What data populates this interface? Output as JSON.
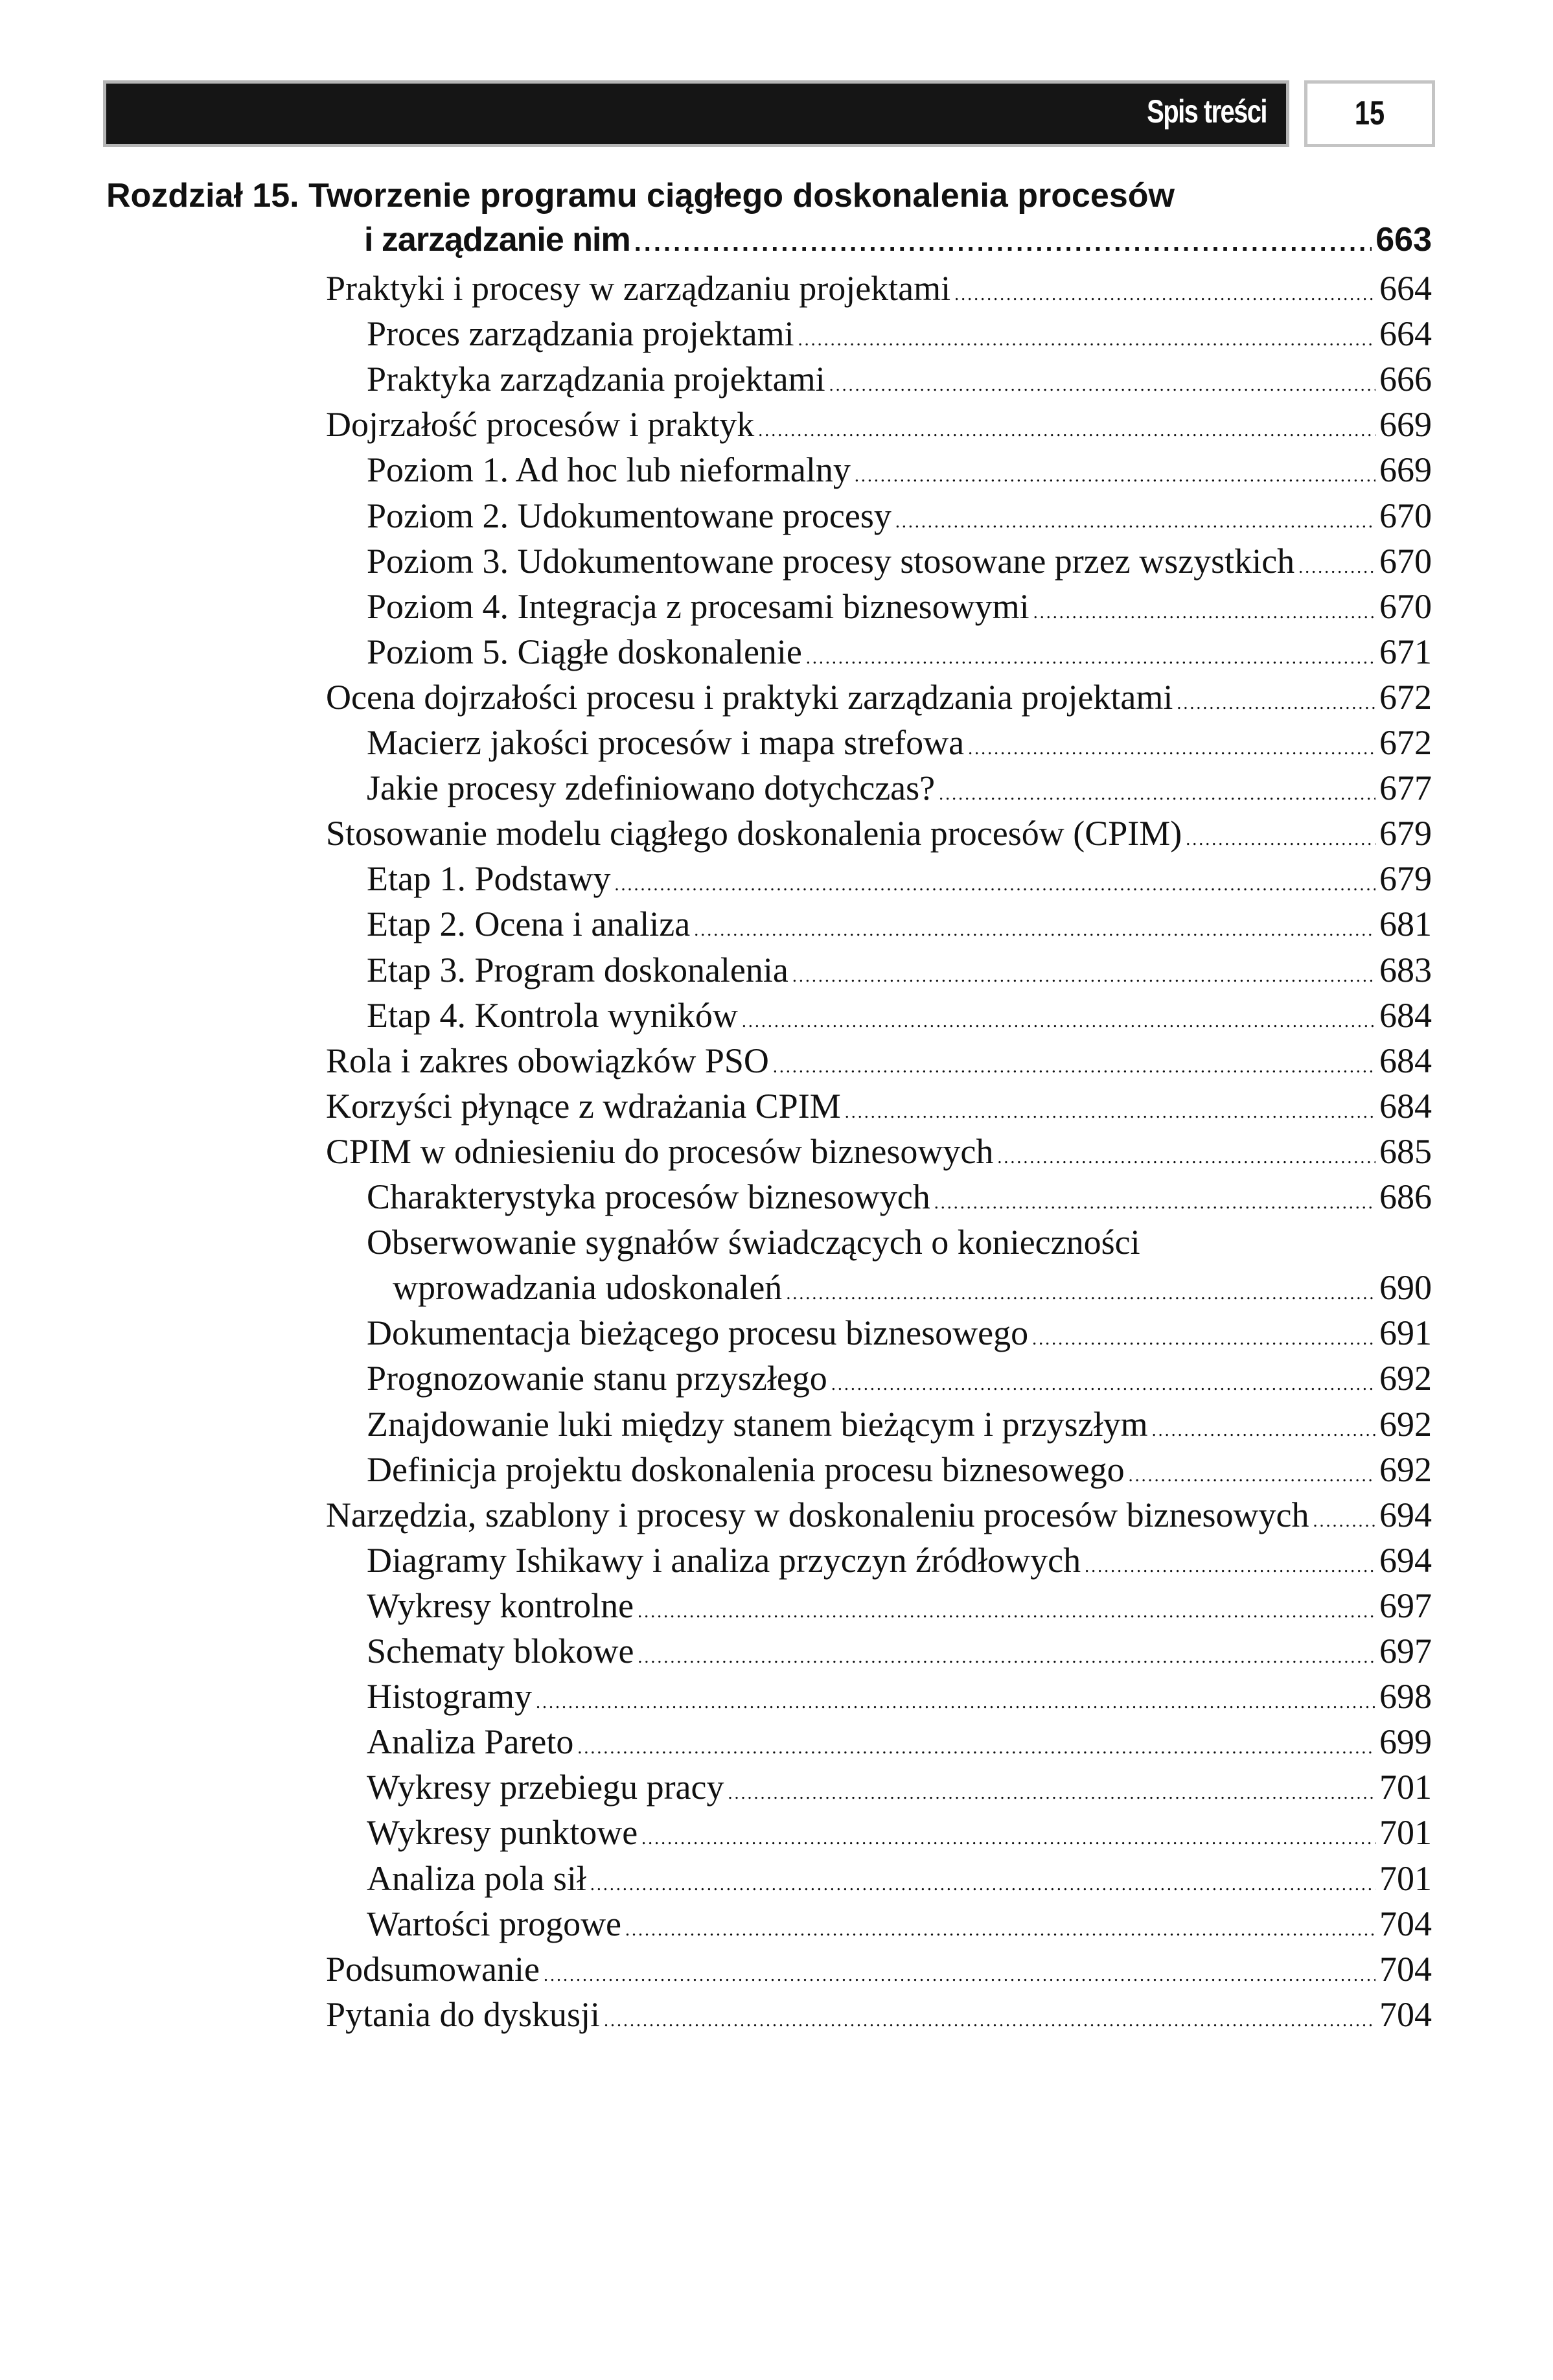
{
  "header": {
    "section_title": "Spis treści",
    "page_number": "15"
  },
  "chapter": {
    "title_line1": "Rozdział 15. Tworzenie programu ciągłego doskonalenia procesów",
    "title_line2": "i zarządzanie nim",
    "page": "663"
  },
  "entries": [
    {
      "level": 1,
      "text": "Praktyki i procesy w zarządzaniu projektami",
      "page": "664"
    },
    {
      "level": 2,
      "text": "Proces zarządzania projektami",
      "page": "664"
    },
    {
      "level": 2,
      "text": "Praktyka zarządzania projektami",
      "page": "666"
    },
    {
      "level": 1,
      "text": "Dojrzałość procesów i praktyk",
      "page": "669"
    },
    {
      "level": 2,
      "text": "Poziom 1. Ad hoc lub nieformalny",
      "page": "669"
    },
    {
      "level": 2,
      "text": "Poziom 2. Udokumentowane procesy",
      "page": "670"
    },
    {
      "level": 2,
      "text": "Poziom 3. Udokumentowane procesy stosowane przez wszystkich",
      "page": "670"
    },
    {
      "level": 2,
      "text": "Poziom 4. Integracja z procesami biznesowymi",
      "page": "670"
    },
    {
      "level": 2,
      "text": "Poziom 5. Ciągłe doskonalenie",
      "page": "671"
    },
    {
      "level": 1,
      "text": "Ocena dojrzałości procesu i praktyki zarządzania projektami",
      "page": "672"
    },
    {
      "level": 2,
      "text": "Macierz jakości procesów i mapa strefowa",
      "page": "672"
    },
    {
      "level": 2,
      "text": "Jakie procesy zdefiniowano dotychczas?",
      "page": "677"
    },
    {
      "level": 1,
      "text": "Stosowanie modelu ciągłego doskonalenia procesów (CPIM)",
      "page": "679"
    },
    {
      "level": 2,
      "text": "Etap 1. Podstawy",
      "page": "679"
    },
    {
      "level": 2,
      "text": "Etap 2. Ocena i analiza",
      "page": "681"
    },
    {
      "level": 2,
      "text": "Etap 3. Program doskonalenia",
      "page": "683"
    },
    {
      "level": 2,
      "text": "Etap 4. Kontrola wyników",
      "page": "684"
    },
    {
      "level": 1,
      "text": "Rola i zakres obowiązków PSO",
      "page": "684"
    },
    {
      "level": 1,
      "text": "Korzyści płynące z wdrażania CPIM",
      "page": "684"
    },
    {
      "level": 1,
      "text": "CPIM w odniesieniu do procesów biznesowych",
      "page": "685"
    },
    {
      "level": 2,
      "text": "Charakterystyka procesów biznesowych",
      "page": "686"
    },
    {
      "level": 2,
      "text": "Obserwowanie sygnałów świadczących o konieczności",
      "continuation": "wprowadzania udoskonaleń",
      "page": "690"
    },
    {
      "level": 2,
      "text": "Dokumentacja bieżącego procesu biznesowego",
      "page": "691"
    },
    {
      "level": 2,
      "text": "Prognozowanie stanu przyszłego",
      "page": "692"
    },
    {
      "level": 2,
      "text": "Znajdowanie luki między stanem bieżącym i przyszłym",
      "page": "692"
    },
    {
      "level": 2,
      "text": "Definicja projektu doskonalenia procesu biznesowego",
      "page": "692"
    },
    {
      "level": 1,
      "text": "Narzędzia, szablony i procesy w doskonaleniu procesów biznesowych",
      "page": "694"
    },
    {
      "level": 2,
      "text": "Diagramy Ishikawy i analiza przyczyn źródłowych",
      "page": "694"
    },
    {
      "level": 2,
      "text": "Wykresy kontrolne",
      "page": "697"
    },
    {
      "level": 2,
      "text": "Schematy blokowe",
      "page": "697"
    },
    {
      "level": 2,
      "text": "Histogramy",
      "page": "698"
    },
    {
      "level": 2,
      "text": "Analiza Pareto",
      "page": "699"
    },
    {
      "level": 2,
      "text": "Wykresy przebiegu pracy",
      "page": "701"
    },
    {
      "level": 2,
      "text": "Wykresy punktowe",
      "page": "701"
    },
    {
      "level": 2,
      "text": "Analiza pola sił",
      "page": "701"
    },
    {
      "level": 2,
      "text": "Wartości progowe",
      "page": "704"
    },
    {
      "level": 1,
      "text": "Podsumowanie",
      "page": "704"
    },
    {
      "level": 1,
      "text": "Pytania do dyskusji",
      "page": "704"
    }
  ]
}
